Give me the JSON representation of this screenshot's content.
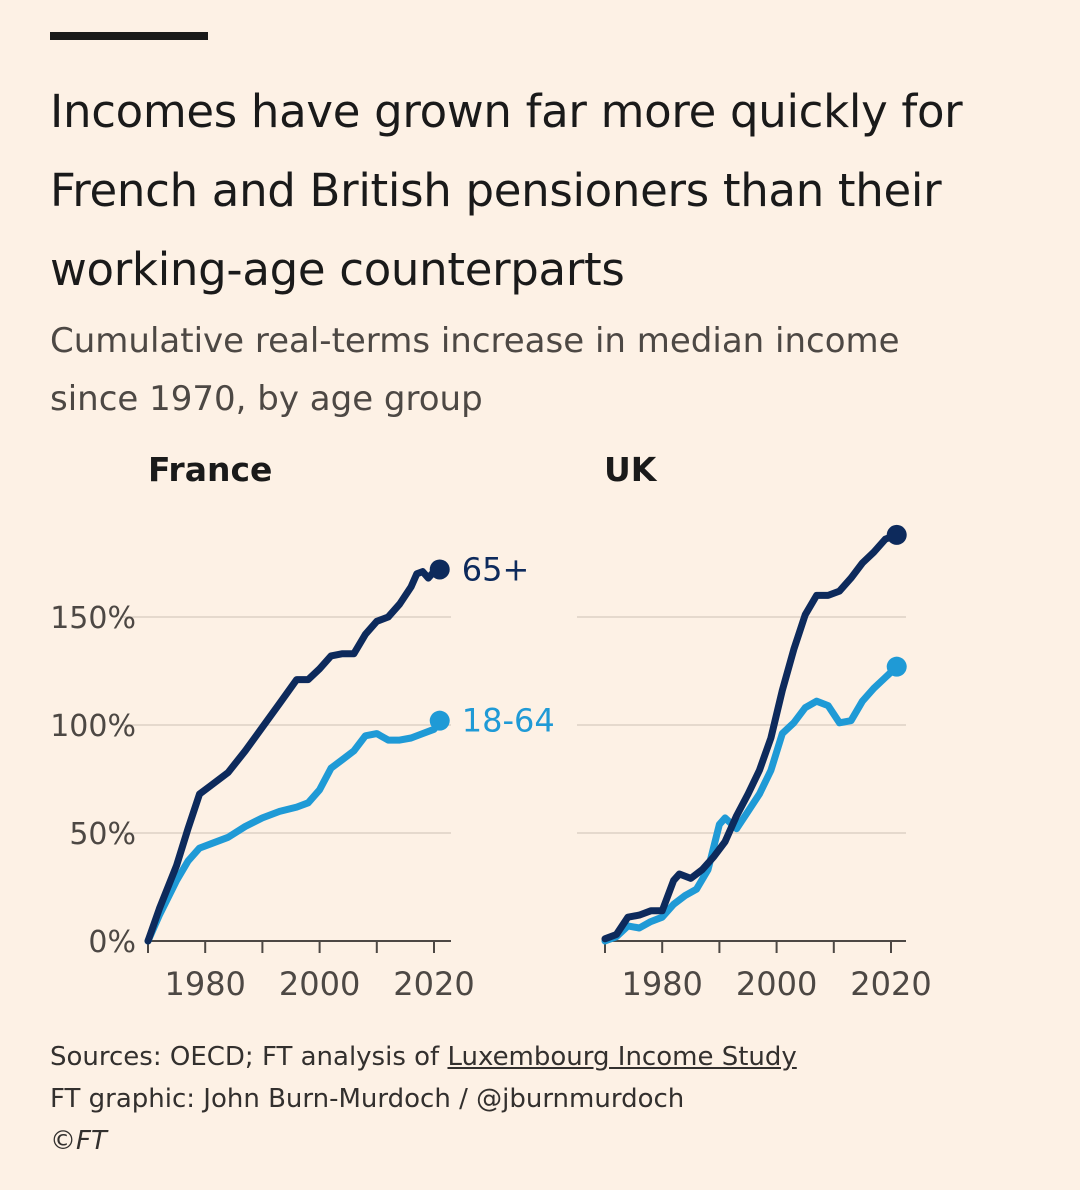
{
  "header": {
    "title_line1": "Incomes have grown far more quickly for",
    "title_line2": "French and British pensioners than their",
    "title_line3": "working-age counterparts",
    "subtitle_line1": "Cumulative real-terms increase in median income",
    "subtitle_line2": "since 1970, by age group"
  },
  "footer": {
    "sources_prefix": "Sources: OECD; FT analysis of ",
    "sources_link": "Luxembourg Income Study",
    "credit": "FT graphic: John Burn-Murdoch / @jburnmurdoch",
    "copyright": "©FT"
  },
  "colors": {
    "background": "#fdf1e5",
    "series_65_plus": "#0d2a5c",
    "series_18_64": "#1f9ad6",
    "grid": "#e5d9cd"
  },
  "chart_data": [
    {
      "type": "line",
      "panel": "France",
      "title": "France",
      "ylabel_ticks": [
        "0%",
        "50%",
        "100%",
        "150%"
      ],
      "y_ticks": [
        0,
        50,
        100,
        150
      ],
      "x_ticks": [
        1980,
        2000,
        2020
      ],
      "x_tick_labels": [
        "1980",
        "2000",
        "2020"
      ],
      "xlim": [
        1970,
        2022
      ],
      "ylim": [
        0,
        180
      ],
      "series": [
        {
          "name": "65+",
          "label": "65+",
          "color": "#0d2a5c",
          "x": [
            1970,
            1972,
            1975,
            1977,
            1979,
            1981,
            1984,
            1987,
            1990,
            1993,
            1996,
            1998,
            2000,
            2002,
            2004,
            2006,
            2008,
            2010,
            2012,
            2014,
            2016,
            2017,
            2018,
            2019,
            2020,
            2021
          ],
          "y": [
            0,
            15,
            35,
            52,
            68,
            72,
            78,
            88,
            99,
            110,
            121,
            121,
            126,
            132,
            133,
            133,
            142,
            148,
            150,
            156,
            164,
            170,
            171,
            168,
            171,
            172
          ]
        },
        {
          "name": "18-64",
          "label": "18-64",
          "color": "#1f9ad6",
          "x": [
            1970,
            1972,
            1975,
            1977,
            1979,
            1981,
            1984,
            1987,
            1990,
            1993,
            1996,
            1998,
            2000,
            2002,
            2004,
            2006,
            2008,
            2010,
            2012,
            2014,
            2016,
            2018,
            2020,
            2021
          ],
          "y": [
            0,
            12,
            28,
            37,
            43,
            45,
            48,
            53,
            57,
            60,
            62,
            64,
            70,
            80,
            84,
            88,
            95,
            96,
            93,
            93,
            94,
            96,
            98,
            102
          ]
        }
      ]
    },
    {
      "type": "line",
      "panel": "UK",
      "title": "UK",
      "y_ticks": [
        0,
        50,
        100,
        150
      ],
      "x_ticks": [
        1980,
        2000,
        2020
      ],
      "x_tick_labels": [
        "1980",
        "2000",
        "2020"
      ],
      "xlim": [
        1970,
        2022
      ],
      "ylim": [
        0,
        180
      ],
      "series": [
        {
          "name": "65+",
          "color": "#0d2a5c",
          "x": [
            1970,
            1972,
            1974,
            1976,
            1978,
            1980,
            1982,
            1983,
            1985,
            1987,
            1989,
            1991,
            1993,
            1995,
            1997,
            1999,
            2001,
            2003,
            2005,
            2007,
            2009,
            2011,
            2013,
            2015,
            2017,
            2019,
            2021
          ],
          "y": [
            1,
            3,
            11,
            12,
            14,
            14,
            28,
            31,
            29,
            33,
            39,
            46,
            58,
            68,
            79,
            94,
            116,
            135,
            151,
            160,
            160,
            162,
            168,
            175,
            180,
            186,
            188
          ]
        },
        {
          "name": "18-64",
          "color": "#1f9ad6",
          "x": [
            1970,
            1972,
            1974,
            1976,
            1978,
            1980,
            1982,
            1984,
            1986,
            1988,
            1990,
            1991,
            1993,
            1995,
            1997,
            1999,
            2001,
            2003,
            2005,
            2007,
            2009,
            2011,
            2013,
            2015,
            2017,
            2019,
            2021
          ],
          "y": [
            0,
            2,
            7,
            6,
            9,
            11,
            17,
            21,
            24,
            33,
            54,
            57,
            52,
            60,
            68,
            79,
            96,
            101,
            108,
            111,
            109,
            101,
            102,
            111,
            117,
            122,
            127
          ]
        }
      ]
    }
  ]
}
